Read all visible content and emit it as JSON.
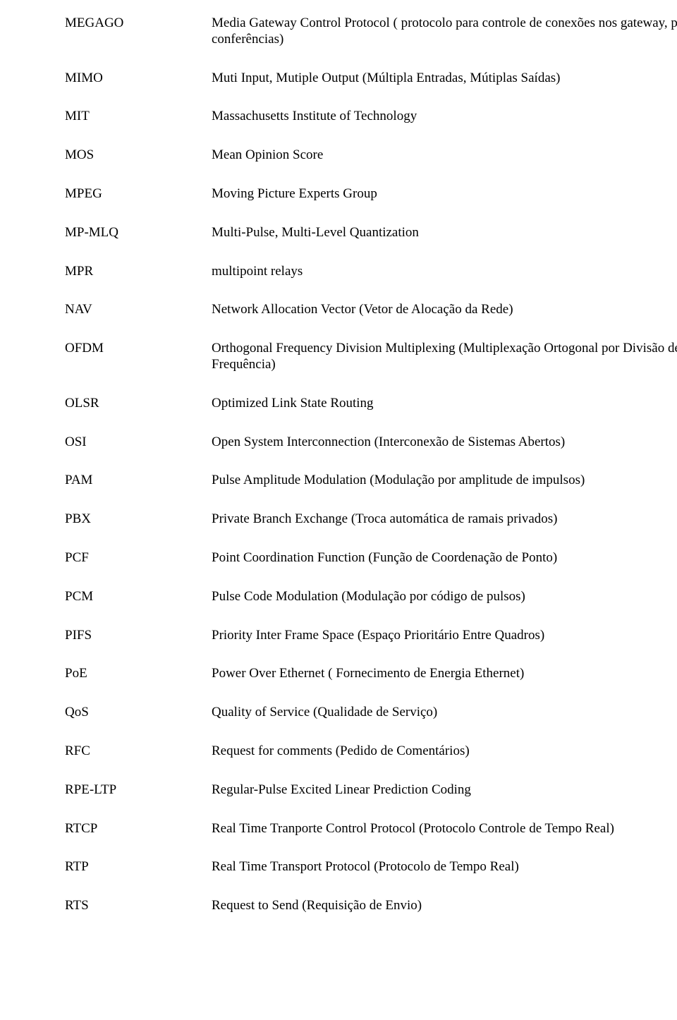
{
  "font_family": "Times New Roman",
  "text_color": "#000000",
  "background_color": "#ffffff",
  "font_size_pt": 14,
  "entries": [
    {
      "abbr": "MEGAGO",
      "def": "Media Gateway Control Protocol ( protocolo para controle de conexões nos gateway, para conferências)"
    },
    {
      "abbr": "MIMO",
      "def": "Muti Input, Mutiple Output (Múltipla Entradas, Mútiplas Saídas)"
    },
    {
      "abbr": "MIT",
      "def": "Massachusetts Institute of Technology"
    },
    {
      "abbr": "MOS",
      "def": "Mean Opinion Score"
    },
    {
      "abbr": "MPEG",
      "def": "Moving Picture Experts Group"
    },
    {
      "abbr": "MP-MLQ",
      "def": "Multi-Pulse, Multi-Level Quantization"
    },
    {
      "abbr": "MPR",
      "def": "multipoint relays"
    },
    {
      "abbr": "NAV",
      "def": "Network Allocation Vector (Vetor de Alocação da Rede)"
    },
    {
      "abbr": "OFDM",
      "def": "Orthogonal Frequency Division Multiplexing (Multiplexação Ortogonal por Divisão de Frequência)"
    },
    {
      "abbr": "OLSR",
      "def": "Optimized Link State Routing"
    },
    {
      "abbr": "OSI",
      "def": "Open System Interconnection (Interconexão de Sistemas Abertos)"
    },
    {
      "abbr": "PAM",
      "def": "Pulse Amplitude Modulation (Modulação por amplitude de impulsos)"
    },
    {
      "abbr": "PBX",
      "def": "Private Branch Exchange (Troca automática de ramais privados)"
    },
    {
      "abbr": "PCF",
      "def": "Point Coordination Function (Função de Coordenação de Ponto)"
    },
    {
      "abbr": "PCM",
      "def": "Pulse Code Modulation (Modulação por código de pulsos)"
    },
    {
      "abbr": "PIFS",
      "def": "Priority Inter Frame Space (Espaço Prioritário Entre Quadros)"
    },
    {
      "abbr": "PoE",
      "def": "Power Over Ethernet  ( Fornecimento de Energia Ethernet)"
    },
    {
      "abbr": "QoS",
      "def": "Quality of Service (Qualidade de Serviço)"
    },
    {
      "abbr": "RFC",
      "def": "Request for comments (Pedido de Comentários)"
    },
    {
      "abbr": "RPE-LTP",
      "def": "Regular-Pulse Excited Linear Prediction Coding"
    },
    {
      "abbr": "RTCP",
      "def": "Real Time Tranporte Control Protocol (Protocolo Controle de Tempo Real)"
    },
    {
      "abbr": "RTP",
      "def": "Real Time Transport Protocol (Protocolo de Tempo Real)"
    },
    {
      "abbr": "RTS",
      "def": "Request to Send (Requisição de Envio)"
    }
  ]
}
